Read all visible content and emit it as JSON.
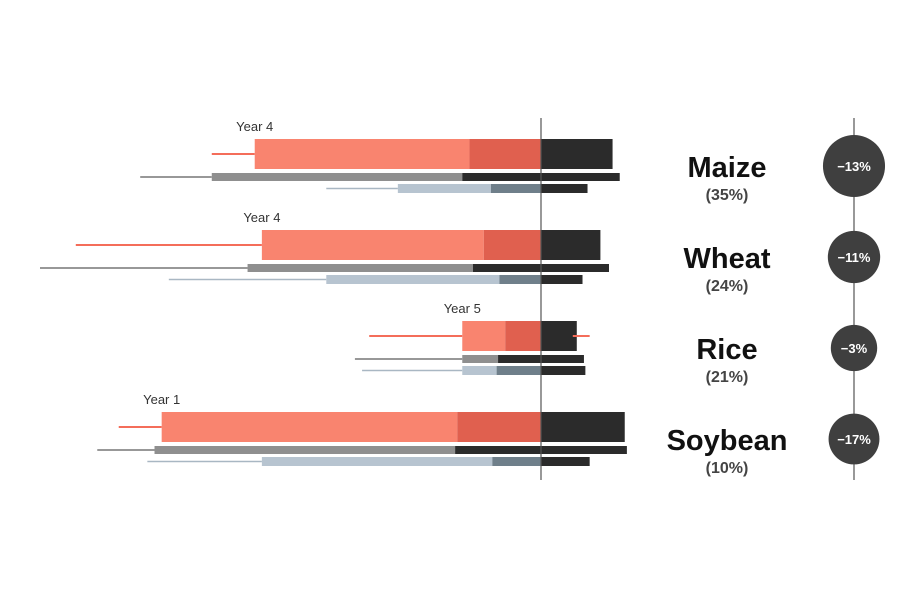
{
  "chart_data": {
    "type": "bar",
    "colors": {
      "main_bar": "#f9846f",
      "main_bar_overlap": "#e0604f",
      "dark_bar": "#2b2b2b",
      "gray_bar": "#8f8f8f",
      "blue_bar": "#b7c4d0",
      "blue_bar_overlap": "#6f7f8a",
      "whisker_red": "#f46d5a",
      "whisker_gray": "#777777",
      "whisker_blue": "#a9b7c3",
      "circle": "#3f3f3f",
      "axis_line": "#555555",
      "band_background": "#ffffff"
    },
    "crops": [
      {
        "name": "Maize",
        "share": "(35%)",
        "year_label": "Year 4",
        "change": "−13%",
        "circle_radius": 0.83,
        "main": {
          "neg": -4.0,
          "pos": 1.0,
          "overlap": -1.0,
          "whisker": -4.6
        },
        "gray": {
          "neg": -4.6,
          "pos": 1.1,
          "overlap": -1.1,
          "whisker": -5.6
        },
        "blue": {
          "neg": -2.0,
          "pos": 0.65,
          "overlap": -0.7,
          "whisker": -3.0
        }
      },
      {
        "name": "Wheat",
        "share": "(24%)",
        "year_label": "Year 4",
        "change": "−11%",
        "circle_radius": 0.7,
        "main": {
          "neg": -3.9,
          "pos": 0.83,
          "overlap": -0.8,
          "whisker": -6.5
        },
        "gray": {
          "neg": -4.1,
          "pos": 0.95,
          "overlap": -0.95,
          "whisker": -7.0
        },
        "blue": {
          "neg": -3.0,
          "pos": 0.58,
          "overlap": -0.58,
          "whisker": -5.2
        }
      },
      {
        "name": "Rice",
        "share": "(21%)",
        "year_label": "Year 5",
        "change": "−3%",
        "circle_radius": 0.62,
        "main": {
          "neg": -1.1,
          "pos": 0.5,
          "overlap": -0.5,
          "whisker": -2.4,
          "whisker_pos": 0.18
        },
        "gray": {
          "neg": -1.1,
          "pos": 0.6,
          "overlap": -0.6,
          "whisker": -2.6
        },
        "blue": {
          "neg": -1.1,
          "pos": 0.62,
          "overlap": -0.62,
          "whisker": -2.5
        }
      },
      {
        "name": "Soybean",
        "share": "(10%)",
        "year_label": "Year 1",
        "change": "−17%",
        "circle_radius": 0.68,
        "main": {
          "neg": -5.3,
          "pos": 1.17,
          "overlap": -1.17,
          "whisker": -5.9
        },
        "gray": {
          "neg": -5.4,
          "pos": 1.2,
          "overlap": -1.2,
          "whisker": -6.2
        },
        "blue": {
          "neg": -3.9,
          "pos": 0.68,
          "overlap": -0.68,
          "whisker": -5.5
        }
      }
    ],
    "xlim": [
      -7.0,
      1.2
    ]
  }
}
